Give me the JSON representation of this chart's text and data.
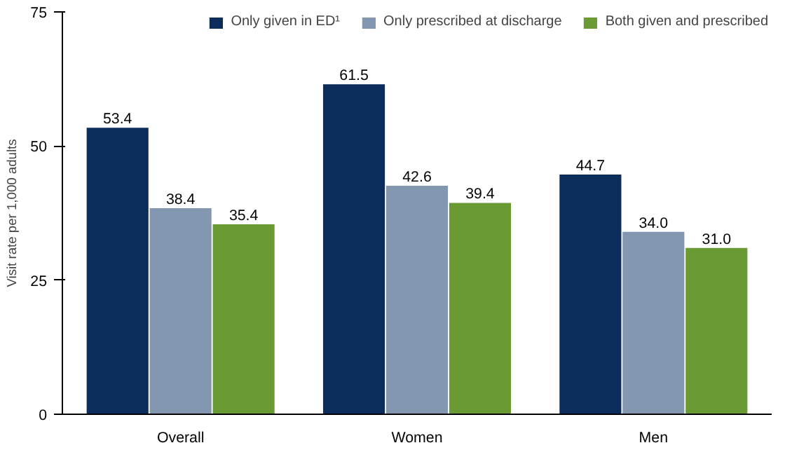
{
  "chart_data": {
    "type": "bar",
    "ylabel": "Visit rate per 1,000 adults",
    "categories": [
      "Overall",
      "Women",
      "Men"
    ],
    "series": [
      {
        "name": "Only given in ED¹",
        "color": "#0c2c5c",
        "values": [
          53.4,
          61.5,
          44.7
        ],
        "value_labels": [
          "53.4",
          "61.5",
          "44.7"
        ]
      },
      {
        "name": "Only prescribed at discharge",
        "color": "#8497b0",
        "values": [
          38.4,
          42.6,
          34.0
        ],
        "value_labels": [
          "38.4",
          "42.6",
          "34.0"
        ]
      },
      {
        "name": "Both given and prescribed",
        "color": "#6a9a33",
        "values": [
          35.4,
          39.4,
          31.0
        ],
        "value_labels": [
          "35.4",
          "39.4",
          "31.0"
        ]
      }
    ],
    "ylim": [
      0,
      75
    ],
    "yticks": [
      0,
      25,
      50,
      75
    ],
    "grid": false,
    "legend": "top right"
  }
}
